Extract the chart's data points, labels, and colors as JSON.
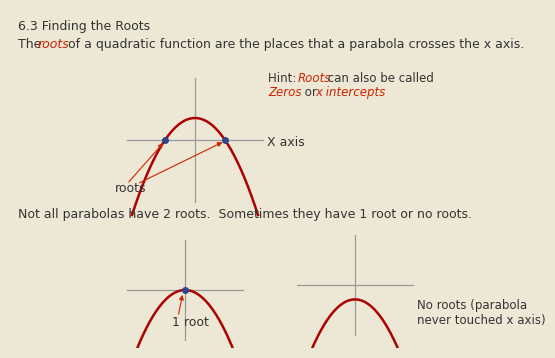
{
  "background_color": "#ede8d5",
  "title": "6.3 Finding the Roots",
  "parabola_color": "#aa0000",
  "axis_color": "#999999",
  "dot_color": "#334488",
  "text_color": "#333333",
  "red_color": "#cc2200",
  "xaxis_label": "X axis",
  "roots_label": "roots",
  "one_root_label": "1 root",
  "no_roots_label": "No roots (parabola\nnever touched x axis)",
  "line1_pre": "The ",
  "line1_red": "roots",
  "line1_post": " of a quadratic function are the places that a parabola crosses the x axis.",
  "hint_pre": "Hint:  ",
  "hint_red1": "Roots",
  "hint_mid": " can also be called",
  "hint_red2": "Zeros",
  "hint_or": " or ",
  "hint_red3": "x intercepts",
  "line2": "Not all parabolas have 2 roots.  Sometimes they have 1 root or no roots."
}
